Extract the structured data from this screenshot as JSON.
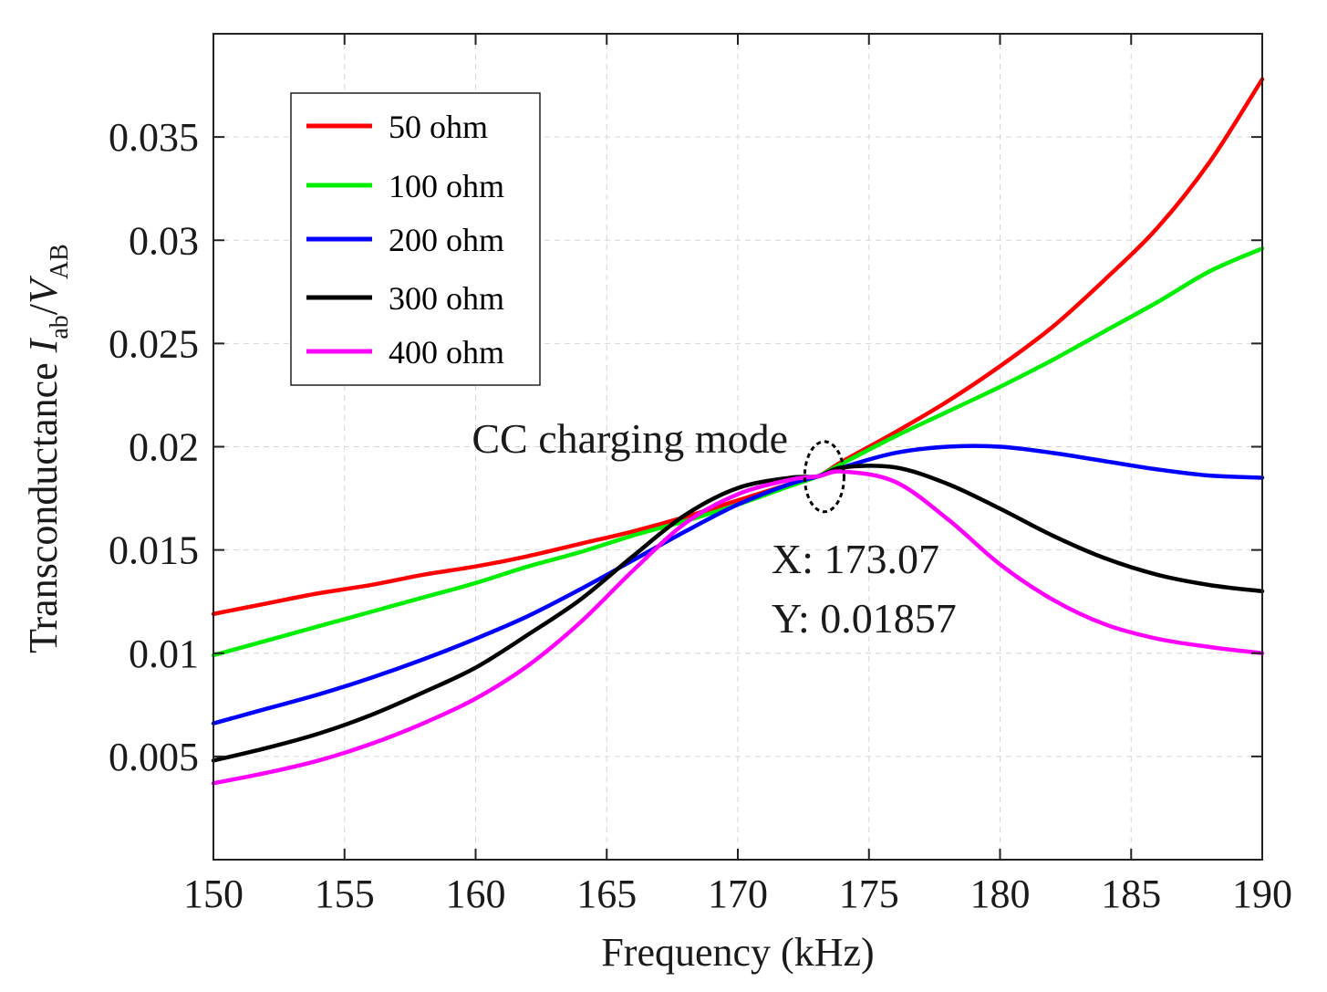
{
  "chart_data": {
    "type": "line",
    "xlabel": "Frequency (kHz)",
    "ylabel": {
      "prefix": "Transconductance ",
      "num_symbol": "I",
      "num_sub": "ab",
      "sep": "/",
      "den_symbol": "V",
      "den_sub": "AB"
    },
    "xlim": [
      150,
      190
    ],
    "ylim": [
      0,
      0.04
    ],
    "xticks": [
      150,
      155,
      160,
      165,
      170,
      175,
      180,
      185,
      190
    ],
    "xtick_labels": [
      "150",
      "155",
      "160",
      "165",
      "170",
      "175",
      "180",
      "185",
      "190"
    ],
    "yticks": [
      0.005,
      0.01,
      0.015,
      0.02,
      0.025,
      0.03,
      0.035
    ],
    "ytick_labels": [
      "0.005",
      "0.01",
      "0.015",
      "0.02",
      "0.025",
      "0.03",
      "0.035"
    ],
    "grid": true,
    "legend_position": "top-left",
    "x": [
      150,
      152,
      154,
      156,
      158,
      160,
      162,
      164,
      166,
      168,
      170,
      172,
      173.07,
      174,
      176,
      178,
      180,
      182,
      184,
      186,
      188,
      190
    ],
    "series": [
      {
        "name": "50 ohm",
        "color": "#ff0000",
        "values": [
          0.0119,
          0.0124,
          0.0129,
          0.0133,
          0.0138,
          0.0142,
          0.0147,
          0.0153,
          0.0159,
          0.0166,
          0.0174,
          0.0182,
          0.01857,
          0.0193,
          0.0207,
          0.0222,
          0.0239,
          0.0258,
          0.0281,
          0.0306,
          0.0338,
          0.0378
        ]
      },
      {
        "name": "100 ohm",
        "color": "#00ee00",
        "values": [
          0.0099,
          0.0106,
          0.0113,
          0.012,
          0.0127,
          0.0134,
          0.0142,
          0.0149,
          0.0157,
          0.0164,
          0.0172,
          0.0181,
          0.01857,
          0.0192,
          0.0205,
          0.0217,
          0.0229,
          0.0242,
          0.0256,
          0.027,
          0.0285,
          0.0296
        ]
      },
      {
        "name": "200 ohm",
        "color": "#0000ff",
        "values": [
          0.0066,
          0.0073,
          0.008,
          0.0088,
          0.0097,
          0.0107,
          0.0118,
          0.0131,
          0.0145,
          0.0159,
          0.0172,
          0.0182,
          0.01857,
          0.019,
          0.0197,
          0.02,
          0.02,
          0.0197,
          0.0193,
          0.0189,
          0.0186,
          0.0185
        ]
      },
      {
        "name": "300 ohm",
        "color": "#000000",
        "values": [
          0.0048,
          0.0054,
          0.0061,
          0.007,
          0.0081,
          0.0093,
          0.0109,
          0.0126,
          0.0147,
          0.0167,
          0.018,
          0.0185,
          0.01857,
          0.019,
          0.019,
          0.0182,
          0.017,
          0.0157,
          0.0146,
          0.0138,
          0.0133,
          0.013
        ]
      },
      {
        "name": "400 ohm",
        "color": "#ff00ff",
        "values": [
          0.0037,
          0.0042,
          0.0048,
          0.0056,
          0.0066,
          0.0078,
          0.0094,
          0.0115,
          0.014,
          0.0163,
          0.0177,
          0.0184,
          0.01857,
          0.0188,
          0.0183,
          0.0165,
          0.0143,
          0.0126,
          0.0114,
          0.0107,
          0.0103,
          0.01
        ]
      }
    ],
    "annotations": {
      "mode_label": "CC charging mode",
      "datatip_x": "X: 173.07",
      "datatip_y": "Y: 0.01857",
      "marker_point": {
        "x": 173.3,
        "y": 0.01855,
        "rx_data": 0.75,
        "ry_data": 0.0017
      }
    }
  }
}
